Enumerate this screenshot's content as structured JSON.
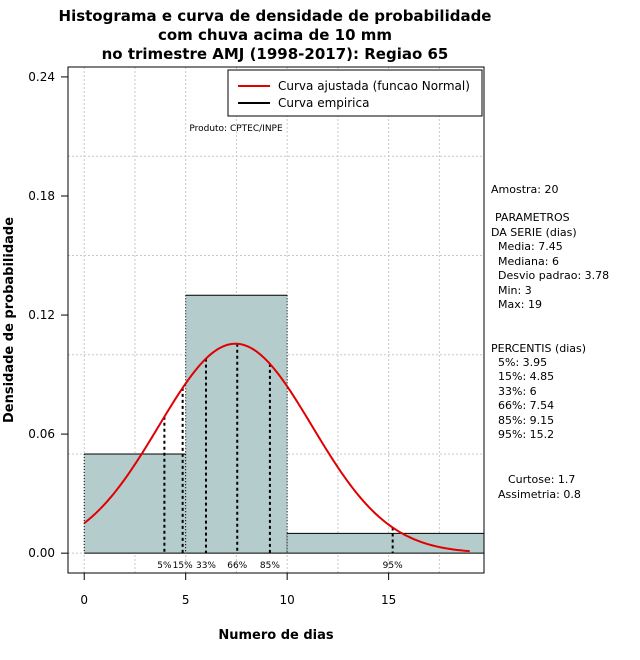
{
  "chart_data": {
    "type": "histogram",
    "title_lines": [
      "Histograma e curva de densidade de probabilidade",
      "com chuva acima de 10 mm",
      "no trimestre AMJ (1998-2017): Regiao 65"
    ],
    "xlabel": "Numero de dias",
    "ylabel": "Densidade de probabilidade",
    "xlim": [
      -0.8,
      19.7
    ],
    "ylim": [
      -0.01,
      0.245
    ],
    "x_ticks": [
      0,
      5,
      10,
      15
    ],
    "y_ticks": [
      0.0,
      0.06,
      0.12,
      0.18,
      0.24
    ],
    "y_tick_labels": [
      "0.00",
      "0.06",
      "0.12",
      "0.18",
      "0.24"
    ],
    "bins": [
      {
        "x0": 0,
        "x1": 5,
        "density": 0.05
      },
      {
        "x0": 5,
        "x1": 10,
        "density": 0.13
      },
      {
        "x0": 10,
        "x1": 19.7,
        "density": 0.01
      }
    ],
    "normal_curve": {
      "mean": 7.45,
      "sd": 3.78,
      "x_range": [
        0,
        19
      ]
    },
    "percentile_marks": [
      {
        "label": "5%",
        "value": 3.95
      },
      {
        "label": "15%",
        "value": 4.85
      },
      {
        "label": "33%",
        "value": 6
      },
      {
        "label": "66%",
        "value": 7.54
      },
      {
        "label": "85%",
        "value": 9.15
      },
      {
        "label": "95%",
        "value": 15.2
      }
    ],
    "legend": {
      "position": "top-right",
      "entries": [
        {
          "label": "Curva ajustada (funcao Normal)",
          "color": "#e00000"
        },
        {
          "label": "Curva empirica",
          "color": "#000000"
        }
      ]
    },
    "annotation": "Produto: CPTEC/INPE",
    "grid": true,
    "bar_color": "#b5cccc",
    "curve_color": "#e00000"
  },
  "side_panel": {
    "amostra": "Amostra: 20",
    "parametros": [
      "PARAMETROS",
      "DA SERIE (dias)"
    ],
    "stats": [
      "Media: 7.45",
      "Mediana: 6",
      "Desvio padrao: 3.78",
      "Min: 3",
      "Max: 19"
    ],
    "percentis_title": "PERCENTIS (dias)",
    "percentis": [
      "5%: 3.95",
      "15%: 4.85",
      "33%: 6",
      "66%: 7.54",
      "85%: 9.15",
      "95%: 15.2"
    ],
    "curtose": "Curtose: 1.7",
    "assimetria": "Assimetria: 0.8"
  }
}
